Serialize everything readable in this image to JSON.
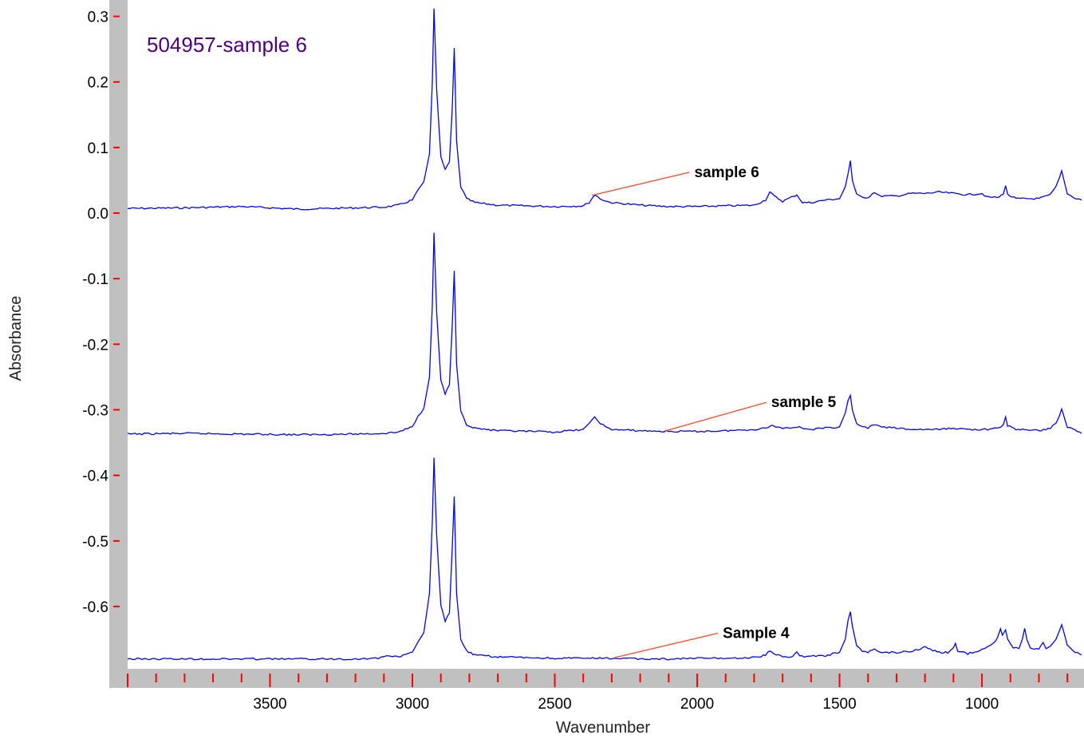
{
  "colors": {
    "axis_band": "#c0c0c0",
    "tick_mark": "#ff0000",
    "trace": "#0000ff",
    "title": "#4b0082",
    "leader": "#ff4a2a"
  },
  "chart_data": {
    "type": "line",
    "title": "504957-sample 6",
    "xlabel": "Wavenumber",
    "ylabel": "Absorbance",
    "xlim": [
      4000,
      650
    ],
    "x_reversed": true,
    "ylim": [
      -0.695,
      0.325
    ],
    "x_ticks": [
      3500,
      3000,
      2500,
      2000,
      1500,
      1000
    ],
    "x_tick_labels": [
      "3500",
      "3000",
      "2500",
      "2000",
      "1500",
      "1000"
    ],
    "y_ticks": [
      0.3,
      0.2,
      0.1,
      0.0,
      -0.1,
      -0.2,
      -0.3,
      -0.4,
      -0.5,
      -0.6
    ],
    "y_tick_labels": [
      "0.3",
      "0.2",
      "0.1",
      "0.0",
      "-0.1",
      "-0.2",
      "-0.3",
      "-0.4",
      "-0.5",
      "-0.6"
    ],
    "grid": false,
    "series": [
      {
        "name": "sample 6",
        "label_at": [
          2010,
          0.055
        ],
        "leader_from": [
          2370,
          0.027
        ],
        "points": [
          [
            4000,
            0.007
          ],
          [
            3800,
            0.008
          ],
          [
            3600,
            0.01
          ],
          [
            3400,
            0.006
          ],
          [
            3200,
            0.008
          ],
          [
            3100,
            0.009
          ],
          [
            3050,
            0.012
          ],
          [
            3000,
            0.02
          ],
          [
            2980,
            0.035
          ],
          [
            2960,
            0.048
          ],
          [
            2940,
            0.09
          ],
          [
            2930,
            0.2
          ],
          [
            2924,
            0.312
          ],
          [
            2915,
            0.19
          ],
          [
            2900,
            0.085
          ],
          [
            2885,
            0.066
          ],
          [
            2870,
            0.078
          ],
          [
            2860,
            0.16
          ],
          [
            2853,
            0.252
          ],
          [
            2845,
            0.11
          ],
          [
            2830,
            0.04
          ],
          [
            2810,
            0.022
          ],
          [
            2780,
            0.016
          ],
          [
            2700,
            0.012
          ],
          [
            2600,
            0.011
          ],
          [
            2500,
            0.01
          ],
          [
            2400,
            0.011
          ],
          [
            2380,
            0.016
          ],
          [
            2360,
            0.028
          ],
          [
            2340,
            0.022
          ],
          [
            2320,
            0.018
          ],
          [
            2300,
            0.016
          ],
          [
            2200,
            0.012
          ],
          [
            2100,
            0.01
          ],
          [
            2000,
            0.01
          ],
          [
            1900,
            0.011
          ],
          [
            1800,
            0.012
          ],
          [
            1760,
            0.02
          ],
          [
            1745,
            0.032
          ],
          [
            1730,
            0.026
          ],
          [
            1700,
            0.018
          ],
          [
            1650,
            0.028
          ],
          [
            1630,
            0.016
          ],
          [
            1600,
            0.016
          ],
          [
            1550,
            0.02
          ],
          [
            1500,
            0.022
          ],
          [
            1480,
            0.04
          ],
          [
            1470,
            0.06
          ],
          [
            1462,
            0.08
          ],
          [
            1455,
            0.05
          ],
          [
            1440,
            0.028
          ],
          [
            1420,
            0.024
          ],
          [
            1400,
            0.024
          ],
          [
            1378,
            0.032
          ],
          [
            1360,
            0.026
          ],
          [
            1300,
            0.026
          ],
          [
            1250,
            0.03
          ],
          [
            1200,
            0.03
          ],
          [
            1150,
            0.032
          ],
          [
            1100,
            0.03
          ],
          [
            1050,
            0.028
          ],
          [
            1000,
            0.03
          ],
          [
            980,
            0.024
          ],
          [
            940,
            0.024
          ],
          [
            925,
            0.03
          ],
          [
            917,
            0.042
          ],
          [
            910,
            0.028
          ],
          [
            880,
            0.022
          ],
          [
            850,
            0.022
          ],
          [
            800,
            0.022
          ],
          [
            760,
            0.028
          ],
          [
            740,
            0.04
          ],
          [
            728,
            0.054
          ],
          [
            720,
            0.064
          ],
          [
            712,
            0.05
          ],
          [
            700,
            0.03
          ],
          [
            680,
            0.024
          ],
          [
            650,
            0.02
          ]
        ]
      },
      {
        "name": "sample 5",
        "label_at": [
          1740,
          -0.296
        ],
        "leader_from": [
          2110,
          -0.332
        ],
        "points": [
          [
            4000,
            -0.337
          ],
          [
            3800,
            -0.336
          ],
          [
            3600,
            -0.337
          ],
          [
            3400,
            -0.338
          ],
          [
            3200,
            -0.337
          ],
          [
            3100,
            -0.336
          ],
          [
            3050,
            -0.334
          ],
          [
            3000,
            -0.326
          ],
          [
            2980,
            -0.31
          ],
          [
            2960,
            -0.298
          ],
          [
            2940,
            -0.25
          ],
          [
            2930,
            -0.14
          ],
          [
            2924,
            -0.03
          ],
          [
            2915,
            -0.15
          ],
          [
            2900,
            -0.255
          ],
          [
            2885,
            -0.275
          ],
          [
            2870,
            -0.262
          ],
          [
            2860,
            -0.17
          ],
          [
            2853,
            -0.088
          ],
          [
            2845,
            -0.23
          ],
          [
            2830,
            -0.302
          ],
          [
            2810,
            -0.322
          ],
          [
            2780,
            -0.328
          ],
          [
            2700,
            -0.332
          ],
          [
            2600,
            -0.333
          ],
          [
            2500,
            -0.334
          ],
          [
            2400,
            -0.33
          ],
          [
            2380,
            -0.322
          ],
          [
            2360,
            -0.311
          ],
          [
            2340,
            -0.32
          ],
          [
            2320,
            -0.327
          ],
          [
            2300,
            -0.33
          ],
          [
            2200,
            -0.332
          ],
          [
            2100,
            -0.333
          ],
          [
            2000,
            -0.333
          ],
          [
            1900,
            -0.332
          ],
          [
            1800,
            -0.33
          ],
          [
            1760,
            -0.328
          ],
          [
            1740,
            -0.324
          ],
          [
            1700,
            -0.328
          ],
          [
            1650,
            -0.326
          ],
          [
            1600,
            -0.33
          ],
          [
            1550,
            -0.328
          ],
          [
            1500,
            -0.326
          ],
          [
            1480,
            -0.305
          ],
          [
            1470,
            -0.285
          ],
          [
            1462,
            -0.278
          ],
          [
            1455,
            -0.3
          ],
          [
            1440,
            -0.322
          ],
          [
            1420,
            -0.326
          ],
          [
            1400,
            -0.328
          ],
          [
            1378,
            -0.322
          ],
          [
            1360,
            -0.326
          ],
          [
            1300,
            -0.328
          ],
          [
            1250,
            -0.33
          ],
          [
            1200,
            -0.33
          ],
          [
            1150,
            -0.33
          ],
          [
            1100,
            -0.328
          ],
          [
            1050,
            -0.33
          ],
          [
            1000,
            -0.33
          ],
          [
            980,
            -0.33
          ],
          [
            940,
            -0.328
          ],
          [
            925,
            -0.322
          ],
          [
            917,
            -0.312
          ],
          [
            910,
            -0.324
          ],
          [
            880,
            -0.33
          ],
          [
            850,
            -0.33
          ],
          [
            800,
            -0.332
          ],
          [
            760,
            -0.328
          ],
          [
            740,
            -0.32
          ],
          [
            728,
            -0.31
          ],
          [
            720,
            -0.298
          ],
          [
            712,
            -0.31
          ],
          [
            700,
            -0.326
          ],
          [
            680,
            -0.33
          ],
          [
            650,
            -0.336
          ]
        ]
      },
      {
        "name": "Sample 4",
        "label_at": [
          1910,
          -0.648
        ],
        "leader_from": [
          2290,
          -0.678
        ],
        "points": [
          [
            4000,
            -0.68
          ],
          [
            3800,
            -0.68
          ],
          [
            3600,
            -0.68
          ],
          [
            3400,
            -0.68
          ],
          [
            3200,
            -0.68
          ],
          [
            3120,
            -0.679
          ],
          [
            3100,
            -0.676
          ],
          [
            3090,
            -0.674
          ],
          [
            3070,
            -0.677
          ],
          [
            3040,
            -0.676
          ],
          [
            3000,
            -0.67
          ],
          [
            2980,
            -0.655
          ],
          [
            2960,
            -0.64
          ],
          [
            2940,
            -0.58
          ],
          [
            2930,
            -0.47
          ],
          [
            2924,
            -0.373
          ],
          [
            2915,
            -0.49
          ],
          [
            2900,
            -0.598
          ],
          [
            2885,
            -0.622
          ],
          [
            2870,
            -0.61
          ],
          [
            2860,
            -0.51
          ],
          [
            2853,
            -0.432
          ],
          [
            2845,
            -0.58
          ],
          [
            2830,
            -0.65
          ],
          [
            2810,
            -0.668
          ],
          [
            2780,
            -0.674
          ],
          [
            2700,
            -0.677
          ],
          [
            2600,
            -0.678
          ],
          [
            2500,
            -0.679
          ],
          [
            2400,
            -0.679
          ],
          [
            2300,
            -0.679
          ],
          [
            2200,
            -0.68
          ],
          [
            2100,
            -0.68
          ],
          [
            2000,
            -0.679
          ],
          [
            1900,
            -0.679
          ],
          [
            1800,
            -0.678
          ],
          [
            1760,
            -0.674
          ],
          [
            1745,
            -0.668
          ],
          [
            1730,
            -0.672
          ],
          [
            1700,
            -0.677
          ],
          [
            1665,
            -0.676
          ],
          [
            1650,
            -0.669
          ],
          [
            1640,
            -0.676
          ],
          [
            1600,
            -0.676
          ],
          [
            1550,
            -0.675
          ],
          [
            1500,
            -0.67
          ],
          [
            1480,
            -0.65
          ],
          [
            1470,
            -0.62
          ],
          [
            1462,
            -0.608
          ],
          [
            1455,
            -0.63
          ],
          [
            1440,
            -0.66
          ],
          [
            1420,
            -0.668
          ],
          [
            1400,
            -0.67
          ],
          [
            1378,
            -0.664
          ],
          [
            1360,
            -0.67
          ],
          [
            1300,
            -0.67
          ],
          [
            1250,
            -0.668
          ],
          [
            1210,
            -0.664
          ],
          [
            1200,
            -0.66
          ],
          [
            1180,
            -0.666
          ],
          [
            1150,
            -0.67
          ],
          [
            1120,
            -0.67
          ],
          [
            1100,
            -0.664
          ],
          [
            1093,
            -0.656
          ],
          [
            1085,
            -0.668
          ],
          [
            1050,
            -0.672
          ],
          [
            1000,
            -0.666
          ],
          [
            980,
            -0.66
          ],
          [
            960,
            -0.656
          ],
          [
            945,
            -0.648
          ],
          [
            935,
            -0.635
          ],
          [
            928,
            -0.645
          ],
          [
            917,
            -0.636
          ],
          [
            910,
            -0.65
          ],
          [
            890,
            -0.662
          ],
          [
            870,
            -0.664
          ],
          [
            858,
            -0.65
          ],
          [
            850,
            -0.633
          ],
          [
            842,
            -0.65
          ],
          [
            830,
            -0.664
          ],
          [
            800,
            -0.664
          ],
          [
            785,
            -0.656
          ],
          [
            775,
            -0.664
          ],
          [
            760,
            -0.662
          ],
          [
            740,
            -0.65
          ],
          [
            728,
            -0.636
          ],
          [
            720,
            -0.628
          ],
          [
            712,
            -0.64
          ],
          [
            700,
            -0.66
          ],
          [
            680,
            -0.668
          ],
          [
            650,
            -0.674
          ]
        ]
      }
    ]
  }
}
